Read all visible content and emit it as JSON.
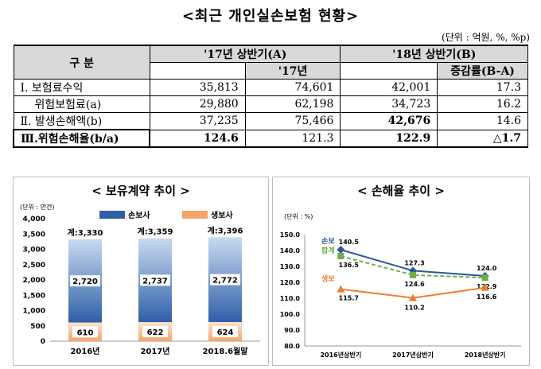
{
  "page": {
    "title": "<최근 개인실손보험 현황>",
    "unit": "(단위 : 억원, %, %p)"
  },
  "table": {
    "col_group": "구 분",
    "h17": "'17년 상반기(A)",
    "h18": "'18년 상반기(B)",
    "sub17": "'17년",
    "sub18": "증감률(B-A)",
    "rows": [
      {
        "label": "Ⅰ. 보험료수익",
        "c1": "35,813",
        "c2": "74,601",
        "c3": "42,001",
        "c4": "17.3"
      },
      {
        "label": "위험보험료(a)",
        "c1": "29,880",
        "c2": "62,198",
        "c3": "34,723",
        "c4": "16.2"
      },
      {
        "label": "Ⅱ. 발생손해액(b)",
        "c1": "37,235",
        "c2": "75,466",
        "c3": "42,676",
        "c4": "14.6"
      },
      {
        "label": "Ⅲ.위험손해율(b/a)",
        "c1": "124.6",
        "c2": "121.3",
        "c3": "122.9",
        "c4": "△1.7"
      }
    ]
  },
  "colors": {
    "damage_bar_top": "#2f5fa8",
    "damage_bar_bottom": "#c9daf0",
    "life_bar": "#f4a56a",
    "damage_line": "#2f5597",
    "total_line": "#70ad47",
    "life_line": "#ed7d31"
  },
  "chart_data": [
    {
      "type": "bar",
      "title": "< 보유계약 추이 >",
      "unit_label": "(단위 : 만건)",
      "categories": [
        "2016년",
        "2017년",
        "2018.6월말"
      ],
      "series": [
        {
          "name": "손보사",
          "values": [
            2720,
            2737,
            2772
          ],
          "labels": [
            "2,720",
            "2,737",
            "2,772"
          ]
        },
        {
          "name": "생보사",
          "values": [
            610,
            622,
            624
          ],
          "labels": [
            "610",
            "622",
            "624"
          ]
        }
      ],
      "totals": [
        "계:3,330",
        "계:3,359",
        "계:3,396"
      ],
      "ylim": [
        0,
        4000
      ],
      "yticks": [
        "0",
        "500",
        "1,000",
        "1,500",
        "2,000",
        "2,500",
        "3,000",
        "3,500",
        "4,000"
      ],
      "stacked": true,
      "legend": "top-right"
    },
    {
      "type": "line",
      "title": "< 손해율 추이 >",
      "unit_label": "(단위 : %)",
      "categories": [
        "2016년상반기",
        "2017년상반기",
        "2018년상반기"
      ],
      "series": [
        {
          "name": "손보",
          "values": [
            140.5,
            127.3,
            124.0
          ],
          "labels": [
            "140.5",
            "127.3",
            "124.0"
          ]
        },
        {
          "name": "합계",
          "values": [
            136.5,
            124.6,
            122.9
          ],
          "labels": [
            "136.5",
            "124.6",
            "122.9"
          ]
        },
        {
          "name": "생보",
          "values": [
            115.7,
            110.2,
            116.6
          ],
          "labels": [
            "115.7",
            "110.2",
            "116.6"
          ]
        }
      ],
      "ylim": [
        80,
        150
      ],
      "yticks": [
        "80.0",
        "90.0",
        "100.0",
        "110.0",
        "120.0",
        "130.0",
        "140.0",
        "150.0"
      ]
    }
  ]
}
